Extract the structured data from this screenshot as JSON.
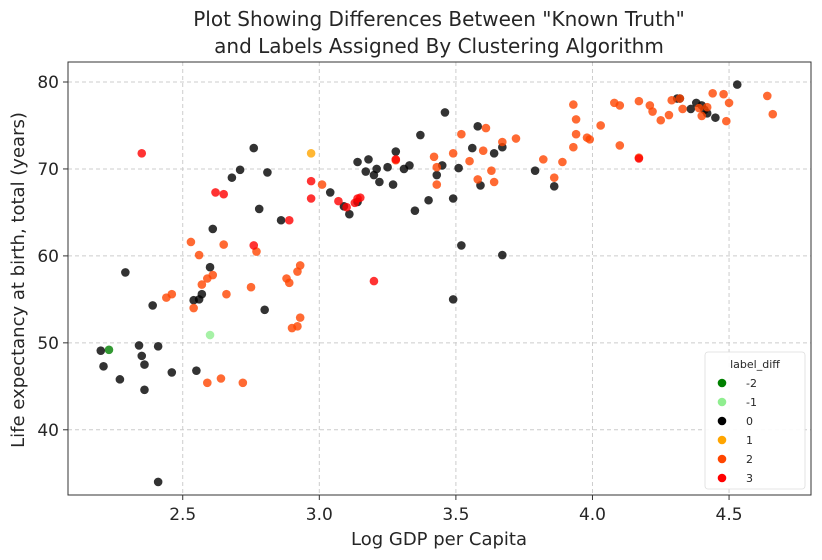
{
  "chart_data": {
    "type": "scatter",
    "title": [
      "Plot Showing Differences Between \"Known Truth\"",
      "and Labels Assigned By Clustering Algorithm"
    ],
    "xlabel": "Log GDP per Capita",
    "ylabel": "Life expectancy at birth, total (years)",
    "xlim": [
      2.08,
      4.8
    ],
    "ylim": [
      32.5,
      82.3
    ],
    "xticks": [
      2.5,
      3.0,
      3.5,
      4.0,
      4.5
    ],
    "xtick_labels": [
      "2.5",
      "3.0",
      "3.5",
      "4.0",
      "4.5"
    ],
    "yticks": [
      40,
      50,
      60,
      70,
      80
    ],
    "ytick_labels": [
      "40",
      "50",
      "60",
      "70",
      "80"
    ],
    "grid": true,
    "legend": {
      "title": "label_diff",
      "placement": "lower-right",
      "entries": [
        {
          "label": "-2",
          "color": "#008000"
        },
        {
          "label": "-1",
          "color": "#90ee90"
        },
        {
          "label": "0",
          "color": "#000000"
        },
        {
          "label": "1",
          "color": "#ffa500"
        },
        {
          "label": "2",
          "color": "#ff4500"
        },
        {
          "label": "3",
          "color": "#ff0000"
        }
      ]
    },
    "series": [
      {
        "name": "-2",
        "color": "#008000",
        "points": [
          [
            2.23,
            49.2
          ]
        ]
      },
      {
        "name": "-1",
        "color": "#90ee90",
        "points": [
          [
            2.6,
            50.9
          ]
        ]
      },
      {
        "name": "0",
        "color": "#000000",
        "points": [
          [
            2.2,
            49.1
          ],
          [
            2.21,
            47.3
          ],
          [
            2.27,
            45.8
          ],
          [
            2.29,
            58.1
          ],
          [
            2.34,
            49.7
          ],
          [
            2.35,
            48.5
          ],
          [
            2.36,
            44.6
          ],
          [
            2.36,
            47.5
          ],
          [
            2.39,
            54.3
          ],
          [
            2.41,
            49.6
          ],
          [
            2.41,
            34.0
          ],
          [
            2.46,
            46.6
          ],
          [
            2.54,
            54.9
          ],
          [
            2.55,
            46.8
          ],
          [
            2.56,
            55.0
          ],
          [
            2.57,
            55.6
          ],
          [
            2.6,
            58.7
          ],
          [
            2.61,
            63.1
          ],
          [
            2.68,
            69.0
          ],
          [
            2.71,
            69.9
          ],
          [
            2.76,
            72.4
          ],
          [
            2.78,
            65.4
          ],
          [
            2.8,
            53.8
          ],
          [
            2.81,
            69.6
          ],
          [
            2.86,
            64.1
          ],
          [
            3.04,
            67.3
          ],
          [
            3.09,
            65.7
          ],
          [
            3.11,
            64.8
          ],
          [
            3.14,
            66.2
          ],
          [
            3.14,
            70.8
          ],
          [
            3.17,
            69.7
          ],
          [
            3.18,
            71.1
          ],
          [
            3.2,
            69.3
          ],
          [
            3.21,
            70.0
          ],
          [
            3.22,
            68.5
          ],
          [
            3.25,
            70.2
          ],
          [
            3.27,
            68.2
          ],
          [
            3.28,
            72.0
          ],
          [
            3.31,
            70.0
          ],
          [
            3.33,
            70.4
          ],
          [
            3.35,
            65.2
          ],
          [
            3.37,
            73.9
          ],
          [
            3.4,
            66.4
          ],
          [
            3.43,
            69.3
          ],
          [
            3.45,
            70.4
          ],
          [
            3.46,
            76.5
          ],
          [
            3.49,
            55.0
          ],
          [
            3.49,
            66.6
          ],
          [
            3.51,
            70.1
          ],
          [
            3.52,
            61.2
          ],
          [
            3.56,
            72.4
          ],
          [
            3.58,
            74.9
          ],
          [
            3.59,
            68.1
          ],
          [
            3.64,
            71.8
          ],
          [
            3.67,
            72.5
          ],
          [
            3.67,
            60.1
          ],
          [
            3.79,
            69.8
          ],
          [
            3.86,
            68.0
          ],
          [
            4.31,
            78.1
          ],
          [
            4.32,
            78.1
          ],
          [
            4.36,
            76.9
          ],
          [
            4.38,
            77.6
          ],
          [
            4.4,
            77.3
          ],
          [
            4.41,
            76.8
          ],
          [
            4.42,
            76.4
          ],
          [
            4.45,
            75.9
          ],
          [
            4.53,
            79.7
          ]
        ]
      },
      {
        "name": "1",
        "color": "#ffa500",
        "points": [
          [
            2.97,
            71.8
          ]
        ]
      },
      {
        "name": "2",
        "color": "#ff4500",
        "points": [
          [
            2.44,
            55.2
          ],
          [
            2.46,
            55.6
          ],
          [
            2.53,
            61.6
          ],
          [
            2.54,
            54.0
          ],
          [
            2.56,
            60.1
          ],
          [
            2.57,
            56.7
          ],
          [
            2.59,
            45.4
          ],
          [
            2.59,
            57.4
          ],
          [
            2.61,
            57.8
          ],
          [
            2.64,
            45.9
          ],
          [
            2.65,
            61.3
          ],
          [
            2.66,
            55.6
          ],
          [
            2.72,
            45.4
          ],
          [
            2.75,
            56.4
          ],
          [
            2.77,
            60.5
          ],
          [
            2.88,
            57.4
          ],
          [
            2.89,
            56.9
          ],
          [
            2.9,
            51.7
          ],
          [
            2.92,
            51.9
          ],
          [
            2.92,
            58.2
          ],
          [
            2.93,
            52.9
          ],
          [
            2.93,
            58.9
          ],
          [
            3.01,
            68.2
          ],
          [
            3.28,
            71.0
          ],
          [
            3.42,
            71.4
          ],
          [
            3.43,
            70.2
          ],
          [
            3.43,
            68.2
          ],
          [
            3.49,
            71.8
          ],
          [
            3.52,
            74.0
          ],
          [
            3.55,
            70.9
          ],
          [
            3.58,
            68.8
          ],
          [
            3.6,
            72.1
          ],
          [
            3.61,
            74.7
          ],
          [
            3.63,
            69.8
          ],
          [
            3.64,
            68.5
          ],
          [
            3.67,
            73.1
          ],
          [
            3.72,
            73.5
          ],
          [
            3.82,
            71.1
          ],
          [
            3.86,
            69.0
          ],
          [
            3.89,
            70.8
          ],
          [
            3.93,
            72.5
          ],
          [
            3.93,
            77.4
          ],
          [
            3.94,
            75.7
          ],
          [
            3.94,
            74.0
          ],
          [
            3.98,
            73.6
          ],
          [
            3.99,
            73.4
          ],
          [
            4.03,
            75.0
          ],
          [
            4.08,
            77.6
          ],
          [
            4.1,
            77.3
          ],
          [
            4.1,
            72.7
          ],
          [
            4.17,
            77.8
          ],
          [
            4.17,
            71.3
          ],
          [
            4.21,
            77.3
          ],
          [
            4.22,
            76.6
          ],
          [
            4.25,
            75.6
          ],
          [
            4.28,
            76.2
          ],
          [
            4.29,
            77.9
          ],
          [
            4.32,
            78.1
          ],
          [
            4.33,
            76.9
          ],
          [
            4.39,
            77.0
          ],
          [
            4.4,
            76.1
          ],
          [
            4.42,
            77.1
          ],
          [
            4.44,
            78.7
          ],
          [
            4.48,
            78.6
          ],
          [
            4.49,
            75.5
          ],
          [
            4.5,
            77.6
          ],
          [
            4.64,
            78.4
          ],
          [
            4.66,
            76.3
          ]
        ]
      },
      {
        "name": "3",
        "color": "#ff0000",
        "points": [
          [
            2.35,
            71.8
          ],
          [
            2.62,
            67.3
          ],
          [
            2.65,
            67.1
          ],
          [
            2.76,
            61.2
          ],
          [
            2.89,
            64.1
          ],
          [
            2.97,
            68.6
          ],
          [
            2.97,
            66.6
          ],
          [
            3.07,
            66.3
          ],
          [
            3.1,
            65.6
          ],
          [
            3.13,
            66.1
          ],
          [
            3.14,
            66.6
          ],
          [
            3.15,
            66.7
          ],
          [
            3.2,
            57.1
          ],
          [
            3.28,
            71.1
          ],
          [
            4.17,
            71.2
          ]
        ]
      }
    ]
  }
}
